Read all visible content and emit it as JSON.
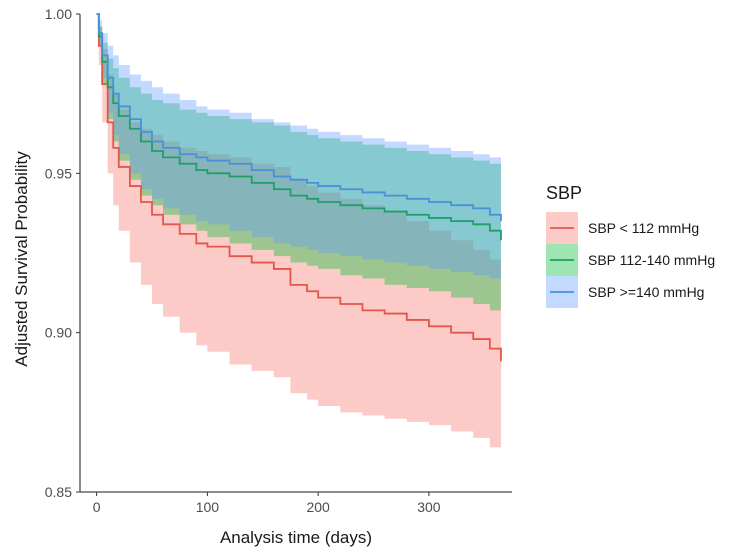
{
  "chart_data": {
    "type": "line",
    "title": "",
    "xlabel": "Analysis time (days)",
    "ylabel": "Adjusted Survival Probability",
    "xlim": [
      -15,
      375
    ],
    "ylim": [
      0.85,
      1.0
    ],
    "x_ticks": [
      0,
      100,
      200,
      300
    ],
    "x_tick_labels": [
      "0",
      "100",
      "200",
      "300"
    ],
    "y_ticks": [
      0.85,
      0.9,
      0.95,
      1.0
    ],
    "y_tick_labels": [
      "0.85",
      "0.90",
      "0.95",
      "1.00"
    ],
    "grid": false,
    "step": true,
    "confidence_bands": true,
    "legend": {
      "title": "SBP",
      "position": "right"
    },
    "series": [
      {
        "name": "SBP < 112 mmHg",
        "color": "#e2574c",
        "band_color": "#f8766d",
        "x": [
          0,
          2,
          5,
          10,
          15,
          20,
          30,
          40,
          50,
          60,
          75,
          90,
          100,
          120,
          140,
          160,
          175,
          190,
          200,
          220,
          240,
          260,
          280,
          300,
          320,
          340,
          355,
          365
        ],
        "value": [
          1.0,
          0.99,
          0.978,
          0.966,
          0.958,
          0.952,
          0.946,
          0.941,
          0.937,
          0.934,
          0.931,
          0.928,
          0.927,
          0.924,
          0.922,
          0.92,
          0.915,
          0.913,
          0.911,
          0.909,
          0.907,
          0.906,
          0.904,
          0.902,
          0.9,
          0.898,
          0.895,
          0.891
        ],
        "lower": [
          1.0,
          0.984,
          0.966,
          0.95,
          0.94,
          0.932,
          0.922,
          0.915,
          0.909,
          0.905,
          0.9,
          0.896,
          0.894,
          0.89,
          0.888,
          0.886,
          0.881,
          0.879,
          0.877,
          0.875,
          0.874,
          0.873,
          0.872,
          0.871,
          0.869,
          0.867,
          0.864,
          0.861
        ],
        "upper": [
          1.0,
          0.996,
          0.989,
          0.981,
          0.975,
          0.97,
          0.966,
          0.964,
          0.962,
          0.96,
          0.958,
          0.957,
          0.956,
          0.955,
          0.953,
          0.952,
          0.948,
          0.946,
          0.944,
          0.942,
          0.94,
          0.938,
          0.935,
          0.932,
          0.929,
          0.926,
          0.923,
          0.92
        ]
      },
      {
        "name": "SBP 112-140 mmHg",
        "color": "#1f9e6a",
        "band_color": "#00ba38",
        "x": [
          0,
          2,
          5,
          10,
          15,
          20,
          30,
          40,
          50,
          60,
          75,
          90,
          100,
          120,
          140,
          160,
          175,
          190,
          200,
          220,
          240,
          260,
          280,
          300,
          320,
          340,
          355,
          365
        ],
        "value": [
          1.0,
          0.993,
          0.985,
          0.977,
          0.972,
          0.968,
          0.964,
          0.96,
          0.957,
          0.955,
          0.953,
          0.951,
          0.95,
          0.949,
          0.947,
          0.945,
          0.943,
          0.942,
          0.941,
          0.94,
          0.939,
          0.938,
          0.937,
          0.936,
          0.935,
          0.934,
          0.932,
          0.929
        ],
        "lower": [
          1.0,
          0.99,
          0.978,
          0.967,
          0.96,
          0.954,
          0.948,
          0.943,
          0.94,
          0.937,
          0.934,
          0.932,
          0.93,
          0.928,
          0.926,
          0.924,
          0.922,
          0.921,
          0.92,
          0.918,
          0.917,
          0.915,
          0.914,
          0.913,
          0.911,
          0.909,
          0.907,
          0.904
        ],
        "upper": [
          1.0,
          0.996,
          0.991,
          0.986,
          0.983,
          0.98,
          0.977,
          0.975,
          0.973,
          0.972,
          0.97,
          0.969,
          0.968,
          0.967,
          0.966,
          0.965,
          0.963,
          0.962,
          0.961,
          0.96,
          0.959,
          0.958,
          0.957,
          0.956,
          0.955,
          0.954,
          0.953,
          0.951
        ]
      },
      {
        "name": "SBP >=140 mmHg",
        "color": "#4a90d9",
        "band_color": "#619cff",
        "x": [
          0,
          2,
          5,
          10,
          15,
          20,
          30,
          40,
          50,
          60,
          75,
          90,
          100,
          120,
          140,
          160,
          175,
          190,
          200,
          220,
          240,
          260,
          280,
          300,
          320,
          340,
          355,
          365
        ],
        "value": [
          1.0,
          0.994,
          0.987,
          0.98,
          0.975,
          0.971,
          0.967,
          0.963,
          0.96,
          0.958,
          0.956,
          0.955,
          0.954,
          0.953,
          0.951,
          0.949,
          0.948,
          0.947,
          0.946,
          0.945,
          0.944,
          0.943,
          0.942,
          0.941,
          0.94,
          0.939,
          0.937,
          0.935
        ],
        "lower": [
          1.0,
          0.99,
          0.98,
          0.969,
          0.962,
          0.956,
          0.95,
          0.945,
          0.942,
          0.939,
          0.937,
          0.935,
          0.934,
          0.932,
          0.93,
          0.928,
          0.927,
          0.926,
          0.925,
          0.924,
          0.923,
          0.922,
          0.921,
          0.92,
          0.919,
          0.918,
          0.917,
          0.914
        ],
        "upper": [
          1.0,
          0.998,
          0.994,
          0.99,
          0.987,
          0.984,
          0.981,
          0.979,
          0.977,
          0.975,
          0.973,
          0.971,
          0.97,
          0.969,
          0.967,
          0.966,
          0.965,
          0.964,
          0.963,
          0.962,
          0.961,
          0.96,
          0.959,
          0.958,
          0.957,
          0.956,
          0.955,
          0.954
        ]
      }
    ]
  }
}
